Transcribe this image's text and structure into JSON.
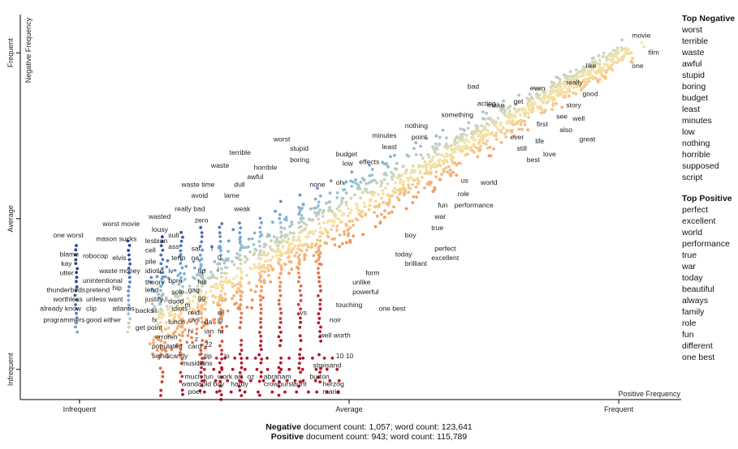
{
  "chart_data": {
    "type": "scatter",
    "xlabel": "Positive Frequency",
    "ylabel": "Negative Frequency",
    "x_ticks": [
      "Infrequent",
      "Average",
      "Frequent"
    ],
    "y_ticks": [
      "Infrequent",
      "Average",
      "Frequent"
    ],
    "colors": {
      "negative": "#2f3f95",
      "neutral": "#f7e6a8",
      "positive": "#b2182b"
    },
    "word_labels": [
      {
        "w": "movie",
        "x": 0.93,
        "y": 0.96
      },
      {
        "w": "film",
        "x": 0.955,
        "y": 0.915
      },
      {
        "w": "one",
        "x": 0.93,
        "y": 0.88
      },
      {
        "w": "like",
        "x": 0.86,
        "y": 0.88
      },
      {
        "w": "really",
        "x": 0.83,
        "y": 0.835
      },
      {
        "w": "good",
        "x": 0.855,
        "y": 0.805
      },
      {
        "w": "story",
        "x": 0.83,
        "y": 0.775
      },
      {
        "w": "see",
        "x": 0.815,
        "y": 0.745
      },
      {
        "w": "well",
        "x": 0.84,
        "y": 0.74
      },
      {
        "w": "also",
        "x": 0.82,
        "y": 0.71
      },
      {
        "w": "great",
        "x": 0.85,
        "y": 0.685
      },
      {
        "w": "even",
        "x": 0.775,
        "y": 0.82
      },
      {
        "w": "get",
        "x": 0.75,
        "y": 0.785
      },
      {
        "w": "first",
        "x": 0.785,
        "y": 0.725
      },
      {
        "w": "life",
        "x": 0.783,
        "y": 0.68
      },
      {
        "w": "love",
        "x": 0.795,
        "y": 0.645
      },
      {
        "w": "ever",
        "x": 0.745,
        "y": 0.69
      },
      {
        "w": "still",
        "x": 0.755,
        "y": 0.66
      },
      {
        "w": "best",
        "x": 0.77,
        "y": 0.63
      },
      {
        "w": "bad",
        "x": 0.68,
        "y": 0.825
      },
      {
        "w": "acting",
        "x": 0.695,
        "y": 0.78
      },
      {
        "w": "make",
        "x": 0.71,
        "y": 0.775
      },
      {
        "w": "something",
        "x": 0.64,
        "y": 0.75
      },
      {
        "w": "nothing",
        "x": 0.585,
        "y": 0.72
      },
      {
        "w": "point",
        "x": 0.595,
        "y": 0.69
      },
      {
        "w": "minutes",
        "x": 0.535,
        "y": 0.695
      },
      {
        "w": "least",
        "x": 0.55,
        "y": 0.665
      },
      {
        "w": "budget",
        "x": 0.48,
        "y": 0.645
      },
      {
        "w": "low",
        "x": 0.49,
        "y": 0.62
      },
      {
        "w": "effects",
        "x": 0.515,
        "y": 0.625
      },
      {
        "w": "worst",
        "x": 0.385,
        "y": 0.685
      },
      {
        "w": "stupid",
        "x": 0.41,
        "y": 0.66
      },
      {
        "w": "boring",
        "x": 0.41,
        "y": 0.63
      },
      {
        "w": "terrible",
        "x": 0.318,
        "y": 0.65
      },
      {
        "w": "waste",
        "x": 0.29,
        "y": 0.615
      },
      {
        "w": "horrible",
        "x": 0.355,
        "y": 0.61
      },
      {
        "w": "awful",
        "x": 0.345,
        "y": 0.585
      },
      {
        "w": "dull",
        "x": 0.325,
        "y": 0.565
      },
      {
        "w": "none",
        "x": 0.44,
        "y": 0.565
      },
      {
        "w": "oh",
        "x": 0.48,
        "y": 0.57
      },
      {
        "w": "waste time",
        "x": 0.245,
        "y": 0.565
      },
      {
        "w": "avoid",
        "x": 0.26,
        "y": 0.535
      },
      {
        "w": "lame",
        "x": 0.31,
        "y": 0.535
      },
      {
        "w": "weak",
        "x": 0.325,
        "y": 0.5
      },
      {
        "w": "really bad",
        "x": 0.235,
        "y": 0.5
      },
      {
        "w": "zero",
        "x": 0.265,
        "y": 0.47
      },
      {
        "w": "wasted",
        "x": 0.195,
        "y": 0.48
      },
      {
        "w": "lousy",
        "x": 0.2,
        "y": 0.445
      },
      {
        "w": "sult",
        "x": 0.225,
        "y": 0.43
      },
      {
        "w": "worst movie",
        "x": 0.125,
        "y": 0.46
      },
      {
        "w": "mason",
        "x": 0.115,
        "y": 0.42
      },
      {
        "w": "sucks",
        "x": 0.15,
        "y": 0.42
      },
      {
        "w": "lesbian",
        "x": 0.19,
        "y": 0.415
      },
      {
        "w": "cell",
        "x": 0.19,
        "y": 0.39
      },
      {
        "w": "ass",
        "x": 0.225,
        "y": 0.4
      },
      {
        "w": "sat",
        "x": 0.26,
        "y": 0.395
      },
      {
        "w": "f",
        "x": 0.29,
        "y": 0.395
      },
      {
        "w": "one worst",
        "x": 0.05,
        "y": 0.43
      },
      {
        "w": "blame",
        "x": 0.06,
        "y": 0.38
      },
      {
        "w": "robocop",
        "x": 0.095,
        "y": 0.375
      },
      {
        "w": "elvis",
        "x": 0.14,
        "y": 0.37
      },
      {
        "w": "pile",
        "x": 0.19,
        "y": 0.36
      },
      {
        "w": "term",
        "x": 0.23,
        "y": 0.37
      },
      {
        "w": "na",
        "x": 0.26,
        "y": 0.37
      },
      {
        "w": "0",
        "x": 0.3,
        "y": 0.37
      },
      {
        "w": "kay",
        "x": 0.062,
        "y": 0.355
      },
      {
        "w": "waste money",
        "x": 0.12,
        "y": 0.335
      },
      {
        "w": "idiotic",
        "x": 0.19,
        "y": 0.335
      },
      {
        "w": "iv",
        "x": 0.225,
        "y": 0.335
      },
      {
        "w": "rip",
        "x": 0.27,
        "y": 0.335
      },
      {
        "w": "i",
        "x": 0.3,
        "y": 0.34
      },
      {
        "w": "utter",
        "x": 0.06,
        "y": 0.33
      },
      {
        "w": "unintentional",
        "x": 0.095,
        "y": 0.31
      },
      {
        "w": "theory",
        "x": 0.19,
        "y": 0.305
      },
      {
        "w": "bore",
        "x": 0.225,
        "y": 0.31
      },
      {
        "w": "hill",
        "x": 0.27,
        "y": 0.305
      },
      {
        "w": "thunderbirds",
        "x": 0.04,
        "y": 0.285
      },
      {
        "w": "pretend",
        "x": 0.1,
        "y": 0.285
      },
      {
        "w": "hip",
        "x": 0.14,
        "y": 0.29
      },
      {
        "w": "lend",
        "x": 0.19,
        "y": 0.285
      },
      {
        "w": "sole",
        "x": 0.23,
        "y": 0.28
      },
      {
        "w": "gag",
        "x": 0.255,
        "y": 0.285
      },
      {
        "w": "worthless",
        "x": 0.05,
        "y": 0.26
      },
      {
        "w": "unless want",
        "x": 0.1,
        "y": 0.26
      },
      {
        "w": "justify",
        "x": 0.19,
        "y": 0.26
      },
      {
        "w": "dood",
        "x": 0.225,
        "y": 0.255
      },
      {
        "w": "99",
        "x": 0.27,
        "y": 0.26
      },
      {
        "w": "already know",
        "x": 0.03,
        "y": 0.235
      },
      {
        "w": "clip",
        "x": 0.1,
        "y": 0.235
      },
      {
        "w": "atlantis",
        "x": 0.14,
        "y": 0.235
      },
      {
        "w": "backs",
        "x": 0.175,
        "y": 0.23
      },
      {
        "w": "lit",
        "x": 0.2,
        "y": 0.23
      },
      {
        "w": "idiots",
        "x": 0.23,
        "y": 0.235
      },
      {
        "w": "m",
        "x": 0.25,
        "y": 0.245
      },
      {
        "w": "reid",
        "x": 0.255,
        "y": 0.225
      },
      {
        "w": "oil",
        "x": 0.3,
        "y": 0.225
      },
      {
        "w": "programmers",
        "x": 0.035,
        "y": 0.205
      },
      {
        "w": "good either",
        "x": 0.1,
        "y": 0.205
      },
      {
        "w": "fx",
        "x": 0.2,
        "y": 0.205
      },
      {
        "w": "lunch",
        "x": 0.225,
        "y": 0.2
      },
      {
        "w": "civil",
        "x": 0.255,
        "y": 0.205
      },
      {
        "w": "da",
        "x": 0.28,
        "y": 0.2
      },
      {
        "w": "ju",
        "x": 0.3,
        "y": 0.205
      },
      {
        "w": "get point",
        "x": 0.175,
        "y": 0.185
      },
      {
        "w": "hi",
        "x": 0.255,
        "y": 0.175
      },
      {
        "w": "ian",
        "x": 0.28,
        "y": 0.175
      },
      {
        "w": "fu",
        "x": 0.3,
        "y": 0.175
      },
      {
        "w": "erroreh",
        "x": 0.205,
        "y": 0.16
      },
      {
        "w": "z",
        "x": 0.265,
        "y": 0.155
      },
      {
        "w": "populated",
        "x": 0.2,
        "y": 0.135
      },
      {
        "w": "card",
        "x": 0.255,
        "y": 0.135
      },
      {
        "w": "22",
        "x": 0.28,
        "y": 0.14
      },
      {
        "w": "significantly",
        "x": 0.2,
        "y": 0.11
      },
      {
        "w": "tip",
        "x": 0.28,
        "y": 0.11
      },
      {
        "w": "lo",
        "x": 0.31,
        "y": 0.11
      },
      {
        "w": "musicians",
        "x": 0.245,
        "y": 0.09
      },
      {
        "w": "lift",
        "x": 0.27,
        "y": 0.09
      },
      {
        "w": "much fun",
        "x": 0.25,
        "y": 0.055
      },
      {
        "w": "work art",
        "x": 0.3,
        "y": 0.055
      },
      {
        "w": "oz",
        "x": 0.345,
        "y": 0.055
      },
      {
        "w": "abraham",
        "x": 0.37,
        "y": 0.055
      },
      {
        "w": "burton",
        "x": 0.44,
        "y": 0.055
      },
      {
        "w": "wandaold boy",
        "x": 0.245,
        "y": 0.035
      },
      {
        "w": "hardy",
        "x": 0.32,
        "y": 0.035
      },
      {
        "w": "crowhurst",
        "x": 0.37,
        "y": 0.035
      },
      {
        "w": "aunt",
        "x": 0.415,
        "y": 0.035
      },
      {
        "w": "herzog",
        "x": 0.46,
        "y": 0.035
      },
      {
        "w": "poet",
        "x": 0.255,
        "y": 0.015
      },
      {
        "w": "maria",
        "x": 0.46,
        "y": 0.015
      },
      {
        "w": "batman returns",
        "x": 0.25,
        "y": -0.01
      },
      {
        "w": "eleven",
        "x": 0.315,
        "y": -0.01
      },
      {
        "w": "matthau",
        "x": 0.37,
        "y": -0.01
      },
      {
        "w": "kyle",
        "x": 0.42,
        "y": -0.01
      },
      {
        "w": "new world",
        "x": 0.46,
        "y": -0.01
      },
      {
        "w": "streisand",
        "x": 0.445,
        "y": 0.085
      },
      {
        "w": "10 10",
        "x": 0.48,
        "y": 0.11
      },
      {
        "w": "well worth",
        "x": 0.455,
        "y": 0.165
      },
      {
        "w": "noir",
        "x": 0.47,
        "y": 0.205
      },
      {
        "w": "vs",
        "x": 0.425,
        "y": 0.225
      },
      {
        "w": "touching",
        "x": 0.48,
        "y": 0.245
      },
      {
        "w": "one best",
        "x": 0.545,
        "y": 0.235
      },
      {
        "w": "powerful",
        "x": 0.505,
        "y": 0.28
      },
      {
        "w": "unlike",
        "x": 0.505,
        "y": 0.305
      },
      {
        "w": "form",
        "x": 0.525,
        "y": 0.33
      },
      {
        "w": "brilliant",
        "x": 0.585,
        "y": 0.355
      },
      {
        "w": "today",
        "x": 0.57,
        "y": 0.38
      },
      {
        "w": "perfect",
        "x": 0.63,
        "y": 0.395
      },
      {
        "w": "excellent",
        "x": 0.625,
        "y": 0.37
      },
      {
        "w": "boy",
        "x": 0.585,
        "y": 0.43
      },
      {
        "w": "true",
        "x": 0.625,
        "y": 0.45
      },
      {
        "w": "war",
        "x": 0.63,
        "y": 0.48
      },
      {
        "w": "fun",
        "x": 0.635,
        "y": 0.51
      },
      {
        "w": "performance",
        "x": 0.66,
        "y": 0.51
      },
      {
        "w": "role",
        "x": 0.665,
        "y": 0.54
      },
      {
        "w": "us",
        "x": 0.67,
        "y": 0.575
      },
      {
        "w": "world",
        "x": 0.7,
        "y": 0.57
      }
    ]
  },
  "sidebar": {
    "negative_title": "Top Negative",
    "negative_terms": [
      "worst",
      "terrible",
      "waste",
      "awful",
      "stupid",
      "boring",
      "budget",
      "least",
      "minutes",
      "low",
      "nothing",
      "horrible",
      "supposed",
      "script"
    ],
    "positive_title": "Top Positive",
    "positive_terms": [
      "perfect",
      "excellent",
      "world",
      "performance",
      "true",
      "war",
      "today",
      "beautiful",
      "always",
      "family",
      "role",
      "fun",
      "different",
      "one best"
    ]
  },
  "footer": {
    "neg_label": "Negative",
    "neg_text": " document count: 1,057; word count: 123,641",
    "pos_label": "Positive",
    "pos_text": " document count: 943; word count: 115,789"
  }
}
